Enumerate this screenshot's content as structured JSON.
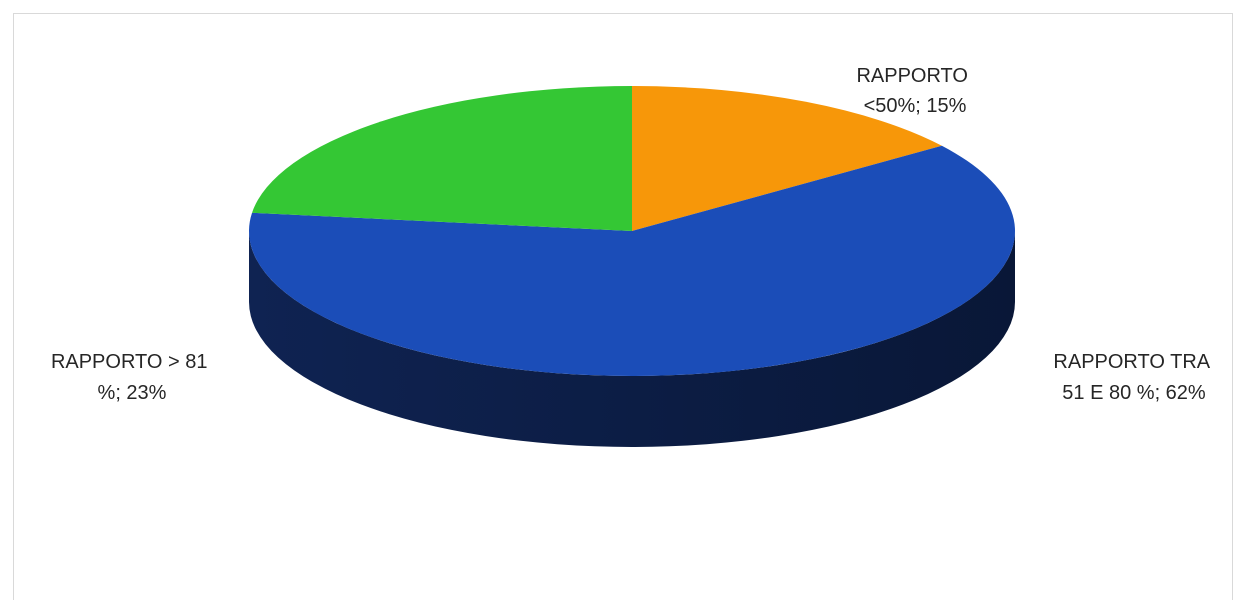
{
  "chart_data": {
    "type": "pie",
    "style": "3d",
    "slices": [
      {
        "category": "RAPPORTO <50%",
        "value": 15,
        "color": "#F79709",
        "label_lines": [
          "RAPPORTO",
          "<50%; 15%"
        ]
      },
      {
        "category": "RAPPORTO TRA 51 E 80 %",
        "value": 62,
        "color": "#1B4DB8",
        "label_lines": [
          "RAPPORTO TRA",
          "51 E 80 %; 62%"
        ]
      },
      {
        "category": "RAPPORTO > 81 %",
        "value": 23,
        "color": "#34C734",
        "label_lines": [
          "RAPPORTO  > 81",
          "%; 23%"
        ]
      }
    ],
    "side_colors": [
      "#B86E04",
      "#0B1E4E",
      "#1E7A1E"
    ]
  }
}
